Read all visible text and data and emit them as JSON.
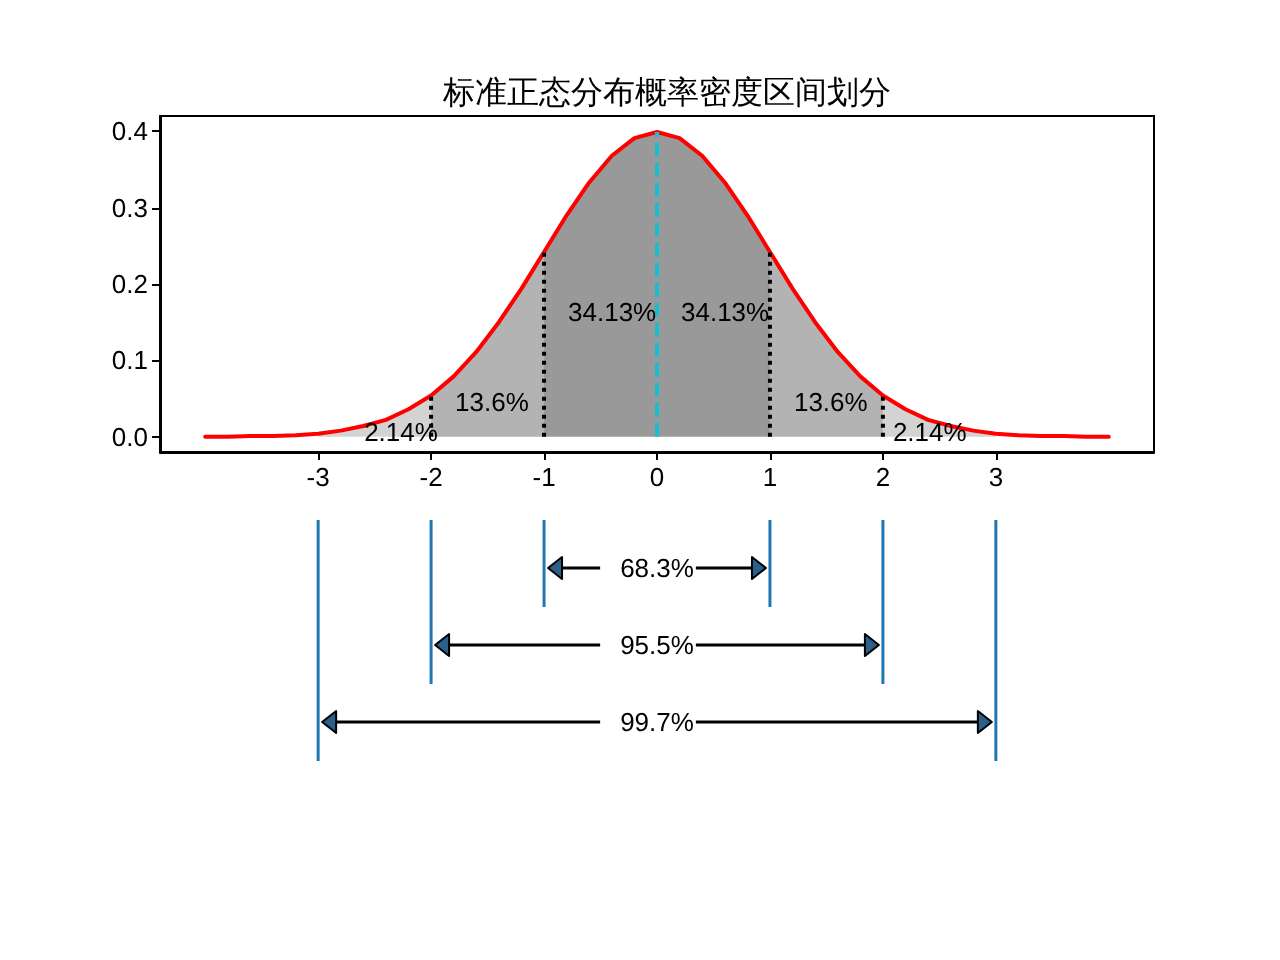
{
  "chart_data": {
    "type": "line",
    "title": "标准正态分布概率密度区间划分",
    "xlim": [
      -4.4,
      4.4
    ],
    "xticks": [
      -3,
      -2,
      -1,
      0,
      1,
      2,
      3
    ],
    "ylim": [
      -0.02,
      0.42
    ],
    "yticks": [
      {
        "value": 0,
        "label": "0.0"
      },
      {
        "value": 0.1,
        "label": "0.1"
      },
      {
        "value": 0.2,
        "label": "0.2"
      },
      {
        "value": 0.3,
        "label": "0.3"
      },
      {
        "value": 0.4,
        "label": "0.4"
      }
    ],
    "marker": "none",
    "series": [
      {
        "type": "area",
        "color": "#999999",
        "x": [
          -1,
          -0.8,
          -0.6,
          -0.4,
          -0.2,
          0,
          0.2,
          0.4,
          0.6,
          0.8,
          1
        ],
        "values": [
          0.242,
          0.29,
          0.333,
          0.368,
          0.391,
          0.399,
          0.391,
          0.368,
          0.333,
          0.29,
          0.242
        ]
      },
      {
        "type": "area",
        "color": "#b3b3b3",
        "x": [
          -2,
          -1.8,
          -1.6,
          -1.4,
          -1.2,
          -1
        ],
        "values": [
          0.054,
          0.079,
          0.111,
          0.15,
          0.194,
          0.242
        ]
      },
      {
        "type": "area",
        "color": "#b3b3b3",
        "x": [
          1,
          1.2,
          1.4,
          1.6,
          1.8,
          2
        ],
        "values": [
          0.242,
          0.194,
          0.15,
          0.111,
          0.079,
          0.054
        ]
      },
      {
        "type": "area",
        "color": "#d3d3d3",
        "x": [
          -3,
          -2.8,
          -2.6,
          -2.4,
          -2.2,
          -2
        ],
        "values": [
          0.004,
          0.008,
          0.014,
          0.022,
          0.036,
          0.054
        ]
      },
      {
        "type": "area",
        "color": "#d3d3d3",
        "x": [
          2,
          2.2,
          2.4,
          2.6,
          2.8,
          3
        ],
        "values": [
          0.054,
          0.036,
          0.022,
          0.014,
          0.008,
          0.004
        ]
      },
      {
        "color": "#ff0000",
        "line_style": "solid",
        "x": [
          -4,
          -3.8,
          -3.6,
          -3.4,
          -3.2,
          -3,
          -2.8,
          -2.6,
          -2.4,
          -2.2,
          -2,
          -1.8,
          -1.6,
          -1.4,
          -1.2,
          -1,
          -0.8,
          -0.6,
          -0.4,
          -0.2,
          0,
          0.2,
          0.4,
          0.6,
          0.8,
          1,
          1.2,
          1.4,
          1.6,
          1.8,
          2,
          2.2,
          2.4,
          2.6,
          2.8,
          3,
          3.2,
          3.4,
          3.6,
          3.8,
          4
        ],
        "values": [
          0.0,
          0.0,
          0.001,
          0.001,
          0.002,
          0.004,
          0.008,
          0.014,
          0.022,
          0.036,
          0.054,
          0.079,
          0.111,
          0.15,
          0.194,
          0.242,
          0.29,
          0.333,
          0.368,
          0.391,
          0.399,
          0.391,
          0.368,
          0.333,
          0.29,
          0.242,
          0.194,
          0.15,
          0.111,
          0.079,
          0.054,
          0.036,
          0.022,
          0.014,
          0.008,
          0.004,
          0.002,
          0.001,
          0.001,
          0.0,
          0.0
        ]
      },
      {
        "color": "#17becf",
        "line_style": "dashed",
        "x": [
          0,
          0
        ],
        "values": [
          0,
          0.399
        ]
      },
      {
        "color": "#000000",
        "line_style": "dotted",
        "x": [
          -2,
          -2,
          null,
          -1,
          -1,
          null,
          1,
          1,
          null,
          2,
          2
        ],
        "values": [
          0,
          0.054,
          null,
          0,
          0.242,
          null,
          0,
          0.242,
          null,
          0,
          0.054
        ]
      }
    ],
    "annotations": [
      "2.14%",
      "13.6%",
      "34.13%",
      "34.13%",
      "13.6%",
      "2.14%",
      "68.3%",
      "95.5%",
      "99.7%"
    ]
  }
}
